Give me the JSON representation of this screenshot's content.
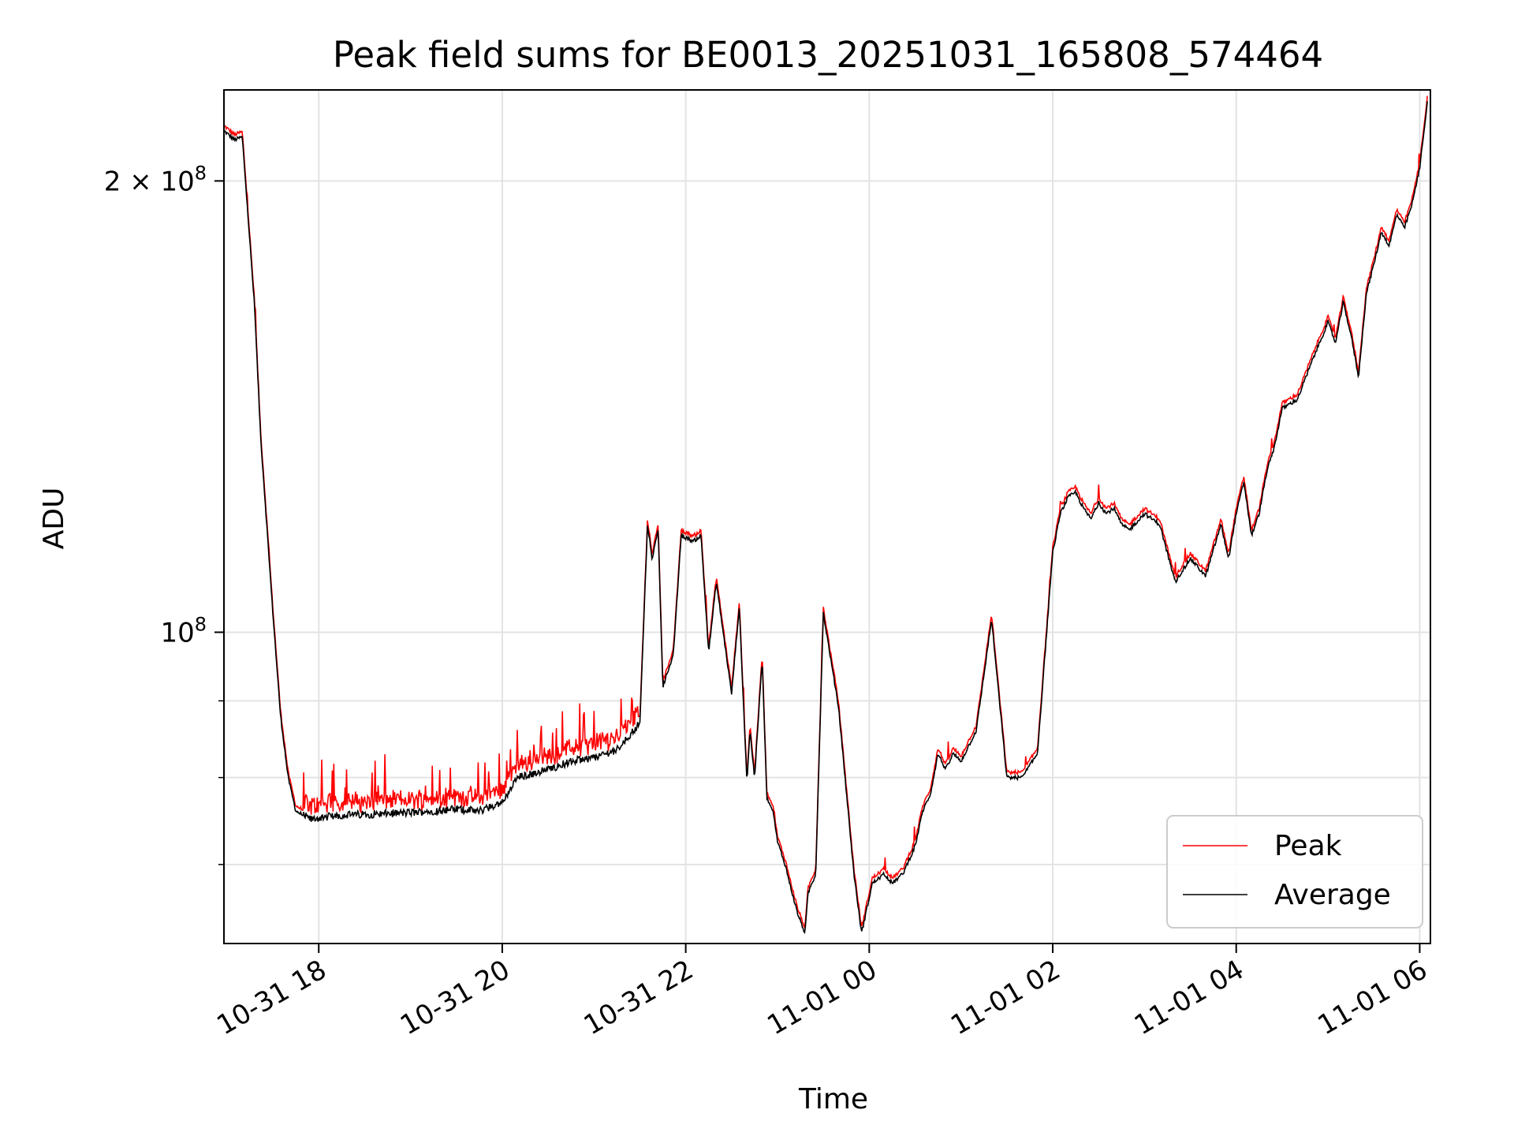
{
  "chart_data": {
    "type": "line",
    "title": "Peak field sums for BE0013_20251031_165808_574464",
    "xlabel": "Time",
    "ylabel": "ADU",
    "y_scale": "log",
    "ylim": [
      62000000,
      230000000
    ],
    "xlim": [
      "2025-10-31T16:58",
      "2025-11-01T06:07"
    ],
    "grid": true,
    "legend_position": "lower-right",
    "x_ticks": [
      {
        "t": "2025-10-31T18:00",
        "label": "10-31 18"
      },
      {
        "t": "2025-10-31T20:00",
        "label": "10-31 20"
      },
      {
        "t": "2025-10-31T22:00",
        "label": "10-31 22"
      },
      {
        "t": "2025-11-01T00:00",
        "label": "11-01 00"
      },
      {
        "t": "2025-11-01T02:00",
        "label": "11-01 02"
      },
      {
        "t": "2025-11-01T04:00",
        "label": "11-01 04"
      },
      {
        "t": "2025-11-01T06:00",
        "label": "11-01 06"
      }
    ],
    "y_major_ticks": [
      {
        "v": 100000000,
        "base": "10",
        "exp": "8",
        "mult": ""
      },
      {
        "v": 200000000,
        "base": "10",
        "exp": "8",
        "mult": "2 × "
      }
    ],
    "y_minor_ticks": [
      70000000,
      80000000,
      90000000
    ],
    "series": [
      {
        "name": "Peak",
        "color": "#ff0000"
      },
      {
        "name": "Average",
        "color": "#000000"
      }
    ],
    "x": [
      "2025-10-31T16:58",
      "2025-10-31T17:05",
      "2025-10-31T17:10",
      "2025-10-31T17:18",
      "2025-10-31T17:22",
      "2025-10-31T17:30",
      "2025-10-31T17:35",
      "2025-10-31T17:40",
      "2025-10-31T17:45",
      "2025-10-31T17:50",
      "2025-10-31T17:55",
      "2025-10-31T18:00",
      "2025-10-31T18:05",
      "2025-10-31T18:15",
      "2025-10-31T18:30",
      "2025-10-31T19:00",
      "2025-10-31T19:30",
      "2025-10-31T19:45",
      "2025-10-31T20:00",
      "2025-10-31T20:10",
      "2025-10-31T20:30",
      "2025-10-31T20:45",
      "2025-10-31T21:00",
      "2025-10-31T21:15",
      "2025-10-31T21:30",
      "2025-10-31T21:35",
      "2025-10-31T21:38",
      "2025-10-31T21:42",
      "2025-10-31T21:45",
      "2025-10-31T21:48",
      "2025-10-31T21:50",
      "2025-10-31T21:52",
      "2025-10-31T21:57",
      "2025-10-31T22:05",
      "2025-10-31T22:10",
      "2025-10-31T22:15",
      "2025-10-31T22:20",
      "2025-10-31T22:30",
      "2025-10-31T22:35",
      "2025-10-31T22:40",
      "2025-10-31T22:42",
      "2025-10-31T22:45",
      "2025-10-31T22:50",
      "2025-10-31T22:53",
      "2025-10-31T22:57",
      "2025-10-31T23:00",
      "2025-10-31T23:05",
      "2025-10-31T23:08",
      "2025-10-31T23:13",
      "2025-10-31T23:18",
      "2025-10-31T23:20",
      "2025-10-31T23:25",
      "2025-10-31T23:30",
      "2025-10-31T23:40",
      "2025-10-31T23:50",
      "2025-10-31T23:55",
      "2025-11-01T00:02",
      "2025-11-01T00:10",
      "2025-11-01T00:15",
      "2025-11-01T00:22",
      "2025-11-01T00:30",
      "2025-11-01T00:35",
      "2025-11-01T00:40",
      "2025-11-01T00:45",
      "2025-11-01T00:50",
      "2025-11-01T00:55",
      "2025-11-01T01:00",
      "2025-11-01T01:10",
      "2025-11-01T01:20",
      "2025-11-01T01:30",
      "2025-11-01T01:40",
      "2025-11-01T01:50",
      "2025-11-01T02:00",
      "2025-11-01T02:05",
      "2025-11-01T02:10",
      "2025-11-01T02:15",
      "2025-11-01T02:20",
      "2025-11-01T02:25",
      "2025-11-01T02:30",
      "2025-11-01T02:35",
      "2025-11-01T02:40",
      "2025-11-01T02:45",
      "2025-11-01T02:50",
      "2025-11-01T03:00",
      "2025-11-01T03:10",
      "2025-11-01T03:20",
      "2025-11-01T03:30",
      "2025-11-01T03:40",
      "2025-11-01T03:50",
      "2025-11-01T03:55",
      "2025-11-01T04:00",
      "2025-11-01T04:05",
      "2025-11-01T04:10",
      "2025-11-01T04:15",
      "2025-11-01T04:20",
      "2025-11-01T04:25",
      "2025-11-01T04:30",
      "2025-11-01T04:40",
      "2025-11-01T04:50",
      "2025-11-01T05:00",
      "2025-11-01T05:05",
      "2025-11-01T05:10",
      "2025-11-01T05:15",
      "2025-11-01T05:20",
      "2025-11-01T05:25",
      "2025-11-01T05:30",
      "2025-11-01T05:35",
      "2025-11-01T05:40",
      "2025-11-01T05:45",
      "2025-11-01T05:50",
      "2025-11-01T05:55",
      "2025-11-01T06:00",
      "2025-11-01T06:05"
    ],
    "average": [
      216000000,
      213000000,
      214000000,
      165000000,
      135000000,
      103000000,
      88000000,
      80000000,
      76000000,
      75500000,
      75000000,
      75200000,
      75300000,
      75500000,
      75600000,
      75800000,
      76200000,
      76000000,
      77000000,
      80000000,
      81000000,
      82000000,
      82500000,
      83500000,
      87000000,
      118000000,
      112000000,
      117000000,
      92000000,
      94000000,
      95000000,
      97000000,
      116000000,
      115000000,
      116000000,
      97000000,
      108000000,
      91000000,
      104000000,
      79500000,
      86000000,
      80000000,
      96000000,
      77500000,
      76000000,
      72500000,
      70000000,
      68000000,
      65000000,
      63000000,
      67000000,
      69000000,
      103000000,
      89000000,
      69000000,
      63000000,
      68000000,
      69000000,
      68000000,
      69000000,
      72000000,
      76000000,
      78000000,
      83000000,
      81000000,
      83000000,
      82000000,
      86000000,
      102000000,
      80000000,
      80000000,
      83000000,
      113000000,
      120000000,
      123000000,
      124000000,
      121000000,
      119000000,
      122000000,
      120000000,
      121000000,
      118000000,
      117000000,
      120000000,
      118000000,
      108000000,
      112000000,
      109000000,
      118000000,
      112000000,
      120000000,
      126000000,
      116000000,
      120000000,
      128000000,
      133000000,
      141000000,
      143000000,
      152000000,
      161000000,
      156000000,
      166000000,
      158000000,
      148000000,
      168000000,
      176000000,
      185000000,
      181000000,
      190000000,
      186000000,
      193000000,
      204000000,
      226000000
    ],
    "peak_offset_fraction": 0.008,
    "spike_period_start": "2025-10-31T17:50",
    "spike_period_end": "2025-10-31T21:30"
  }
}
